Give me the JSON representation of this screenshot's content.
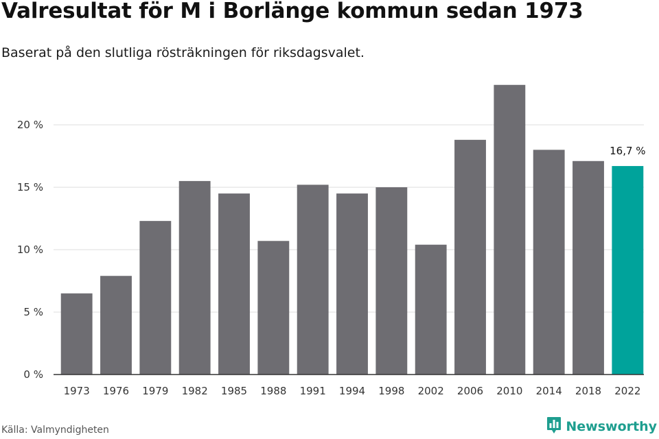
{
  "title": "Valresultat för M i Borlänge kommun sedan 1973",
  "subtitle": "Baserat på den slutliga rösträkningen för riksdagsvalet.",
  "source": "Källa: Valmyndigheten",
  "brand": {
    "name": "Newsworthy",
    "icon": "newsworthy-logo-icon",
    "color": "#1e9e8f"
  },
  "colors": {
    "bar": "#6e6d72",
    "highlight": "#00a39b",
    "grid": "#dddddd",
    "axis": "#333333"
  },
  "chart_data": {
    "type": "bar",
    "title": "Valresultat för M i Borlänge kommun sedan 1973",
    "xlabel": "",
    "ylabel": "",
    "categories": [
      "1973",
      "1976",
      "1979",
      "1982",
      "1985",
      "1988",
      "1991",
      "1994",
      "1998",
      "2002",
      "2006",
      "2010",
      "2014",
      "2018",
      "2022"
    ],
    "values": [
      6.5,
      7.9,
      12.3,
      15.5,
      14.5,
      10.7,
      15.2,
      14.5,
      15.0,
      10.4,
      18.8,
      23.2,
      18.0,
      17.1,
      16.7
    ],
    "highlight_index": 14,
    "highlight_label": "16,7 %",
    "ylim": [
      0,
      25
    ],
    "yticks": [
      0,
      5,
      10,
      15,
      20
    ],
    "ytick_labels": [
      "0 %",
      "5 %",
      "10 %",
      "15 %",
      "20 %"
    ],
    "grid": true
  }
}
